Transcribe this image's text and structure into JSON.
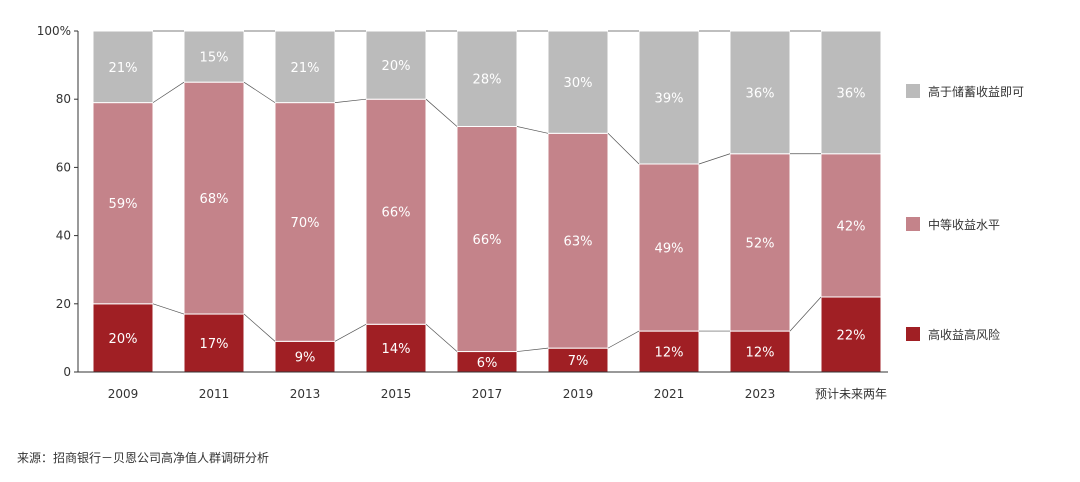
{
  "chart_data": {
    "type": "bar",
    "stacked": true,
    "categories": [
      "2009",
      "2011",
      "2013",
      "2015",
      "2017",
      "2019",
      "2021",
      "2023",
      "预计未来两年"
    ],
    "ylim": [
      0,
      100
    ],
    "yticks": [
      0,
      20,
      40,
      60,
      80,
      100
    ],
    "ytick_labels": [
      "0",
      "20",
      "40",
      "60",
      "80",
      "100%"
    ],
    "grid": false,
    "legend_position": "right",
    "series": [
      {
        "name": "高收益高风险",
        "color": "#a01f24",
        "values": [
          20,
          17,
          9,
          14,
          6,
          7,
          12,
          12,
          22
        ],
        "labels": [
          "20%",
          "17%",
          "9%",
          "14%",
          "6%",
          "7%",
          "12%",
          "12%",
          "22%"
        ]
      },
      {
        "name": "中等收益水平",
        "color": "#c4838a",
        "values": [
          59,
          68,
          70,
          66,
          66,
          63,
          49,
          52,
          42
        ],
        "labels": [
          "59%",
          "68%",
          "70%",
          "66%",
          "66%",
          "63%",
          "49%",
          "52%",
          "42%"
        ]
      },
      {
        "name": "高于储蓄收益即可",
        "color": "#bbbbbb",
        "values": [
          21,
          15,
          21,
          20,
          28,
          30,
          39,
          36,
          36
        ],
        "labels": [
          "21%",
          "15%",
          "21%",
          "20%",
          "28%",
          "30%",
          "39%",
          "36%",
          "36%"
        ]
      }
    ]
  },
  "source": "来源：招商银行－贝恩公司高净值人群调研分析"
}
